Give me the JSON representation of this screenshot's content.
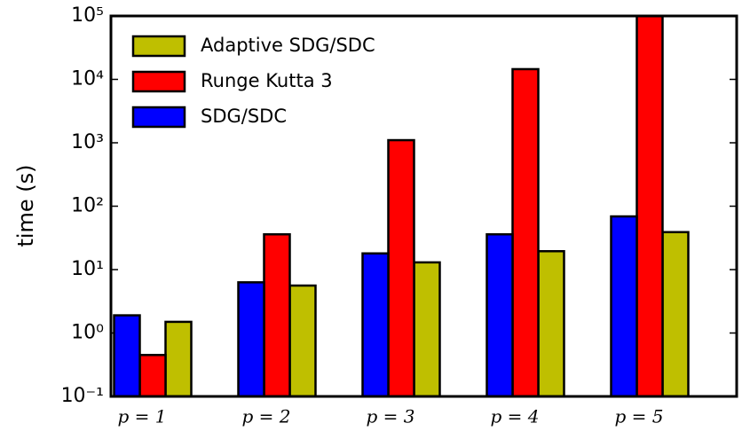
{
  "chart_data": {
    "type": "bar",
    "y_label": "time (s)",
    "log_scale": true,
    "categories": [
      "p = 1",
      "p = 2",
      "p = 3",
      "p = 4",
      "p = 5"
    ],
    "series": [
      {
        "name": "Adaptive SDG/SDC",
        "color": "#bfbf00",
        "values": [
          1.5,
          5.6,
          13,
          19.5,
          39
        ]
      },
      {
        "name": "Runge Kutta 3",
        "color": "#ff0000",
        "values": [
          0.45,
          36,
          1100,
          14500,
          100000
        ]
      },
      {
        "name": "SDG/SDC",
        "color": "#0000ff",
        "values": [
          1.9,
          6.3,
          18,
          36,
          69
        ]
      }
    ],
    "ylim": [
      0.1,
      100000
    ],
    "yticks": [
      {
        "value": 0.1,
        "label": "10⁻¹"
      },
      {
        "value": 1,
        "label": "10⁰"
      },
      {
        "value": 10,
        "label": "10¹"
      },
      {
        "value": 100,
        "label": "10²"
      },
      {
        "value": 1000,
        "label": "10³"
      },
      {
        "value": 10000,
        "label": "10⁴"
      },
      {
        "value": 100000,
        "label": "10⁵"
      }
    ],
    "legend": "upper left"
  }
}
